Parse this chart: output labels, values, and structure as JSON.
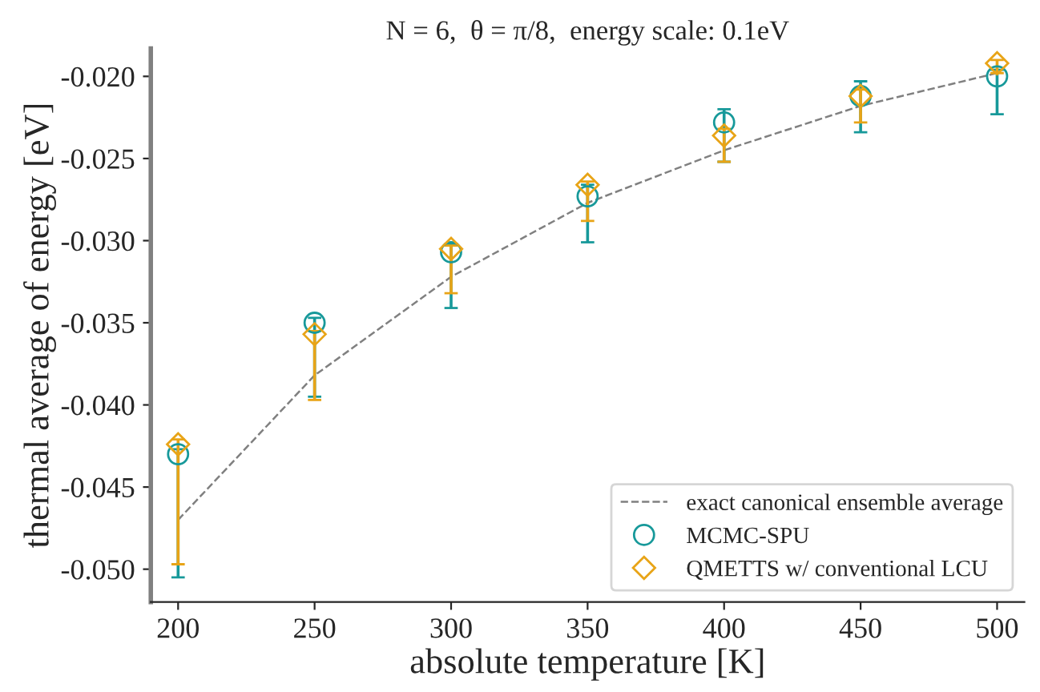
{
  "chart_data": {
    "type": "scatter",
    "title": "N = 6,  θ = π/8,  energy scale: 0.1eV",
    "xlabel": "absolute temperature [K]",
    "ylabel": "thermal average of energy [eV]",
    "x": [
      200,
      250,
      300,
      350,
      400,
      450,
      500
    ],
    "xlim": [
      190,
      510
    ],
    "xticks": [
      200,
      250,
      300,
      350,
      400,
      450,
      500
    ],
    "ylim": [
      -0.052,
      -0.0183
    ],
    "yticks": [
      {
        "value": -0.05,
        "label": "-0.050"
      },
      {
        "value": -0.045,
        "label": "-0.045"
      },
      {
        "value": -0.04,
        "label": "-0.040"
      },
      {
        "value": -0.035,
        "label": "-0.035"
      },
      {
        "value": -0.03,
        "label": "-0.030"
      },
      {
        "value": -0.025,
        "label": "-0.025"
      },
      {
        "value": -0.02,
        "label": "-0.020"
      }
    ],
    "series": [
      {
        "name": "exact canonical ensemble average",
        "type": "line",
        "color": "#808080",
        "line_style": "dashed",
        "marker": "none",
        "values": [
          -0.047,
          -0.0382,
          -0.0322,
          -0.0277,
          -0.0245,
          -0.0218,
          -0.0198
        ]
      },
      {
        "name": "MCMC-SPU",
        "color": "#17999a",
        "marker": "circle",
        "values": [
          -0.043,
          -0.035,
          -0.0307,
          -0.0273,
          -0.0228,
          -0.0212,
          -0.02
        ],
        "errors": [
          [
            -0.0505,
            -0.0427
          ],
          [
            -0.0395,
            -0.0347
          ],
          [
            -0.0341,
            -0.0302
          ],
          [
            -0.0301,
            -0.0266
          ],
          [
            -0.0252,
            -0.022
          ],
          [
            -0.0234,
            -0.0203
          ],
          [
            -0.0223,
            -0.0196
          ]
        ]
      },
      {
        "name": "QMETTS w/ conventional LCU",
        "color": "#e8a417",
        "marker": "diamond",
        "values": [
          -0.0424,
          -0.0357,
          -0.0305,
          -0.0266,
          -0.0236,
          -0.0212,
          -0.0192
        ],
        "errors": [
          [
            -0.0497,
            -0.0421
          ],
          [
            -0.0397,
            -0.0355
          ],
          [
            -0.0332,
            -0.0303
          ],
          [
            -0.0288,
            -0.0264
          ],
          [
            -0.0252,
            -0.0232
          ],
          [
            -0.0228,
            -0.0208
          ],
          [
            -0.0198,
            -0.019
          ]
        ]
      }
    ],
    "legend": "lower right",
    "grid": false
  }
}
